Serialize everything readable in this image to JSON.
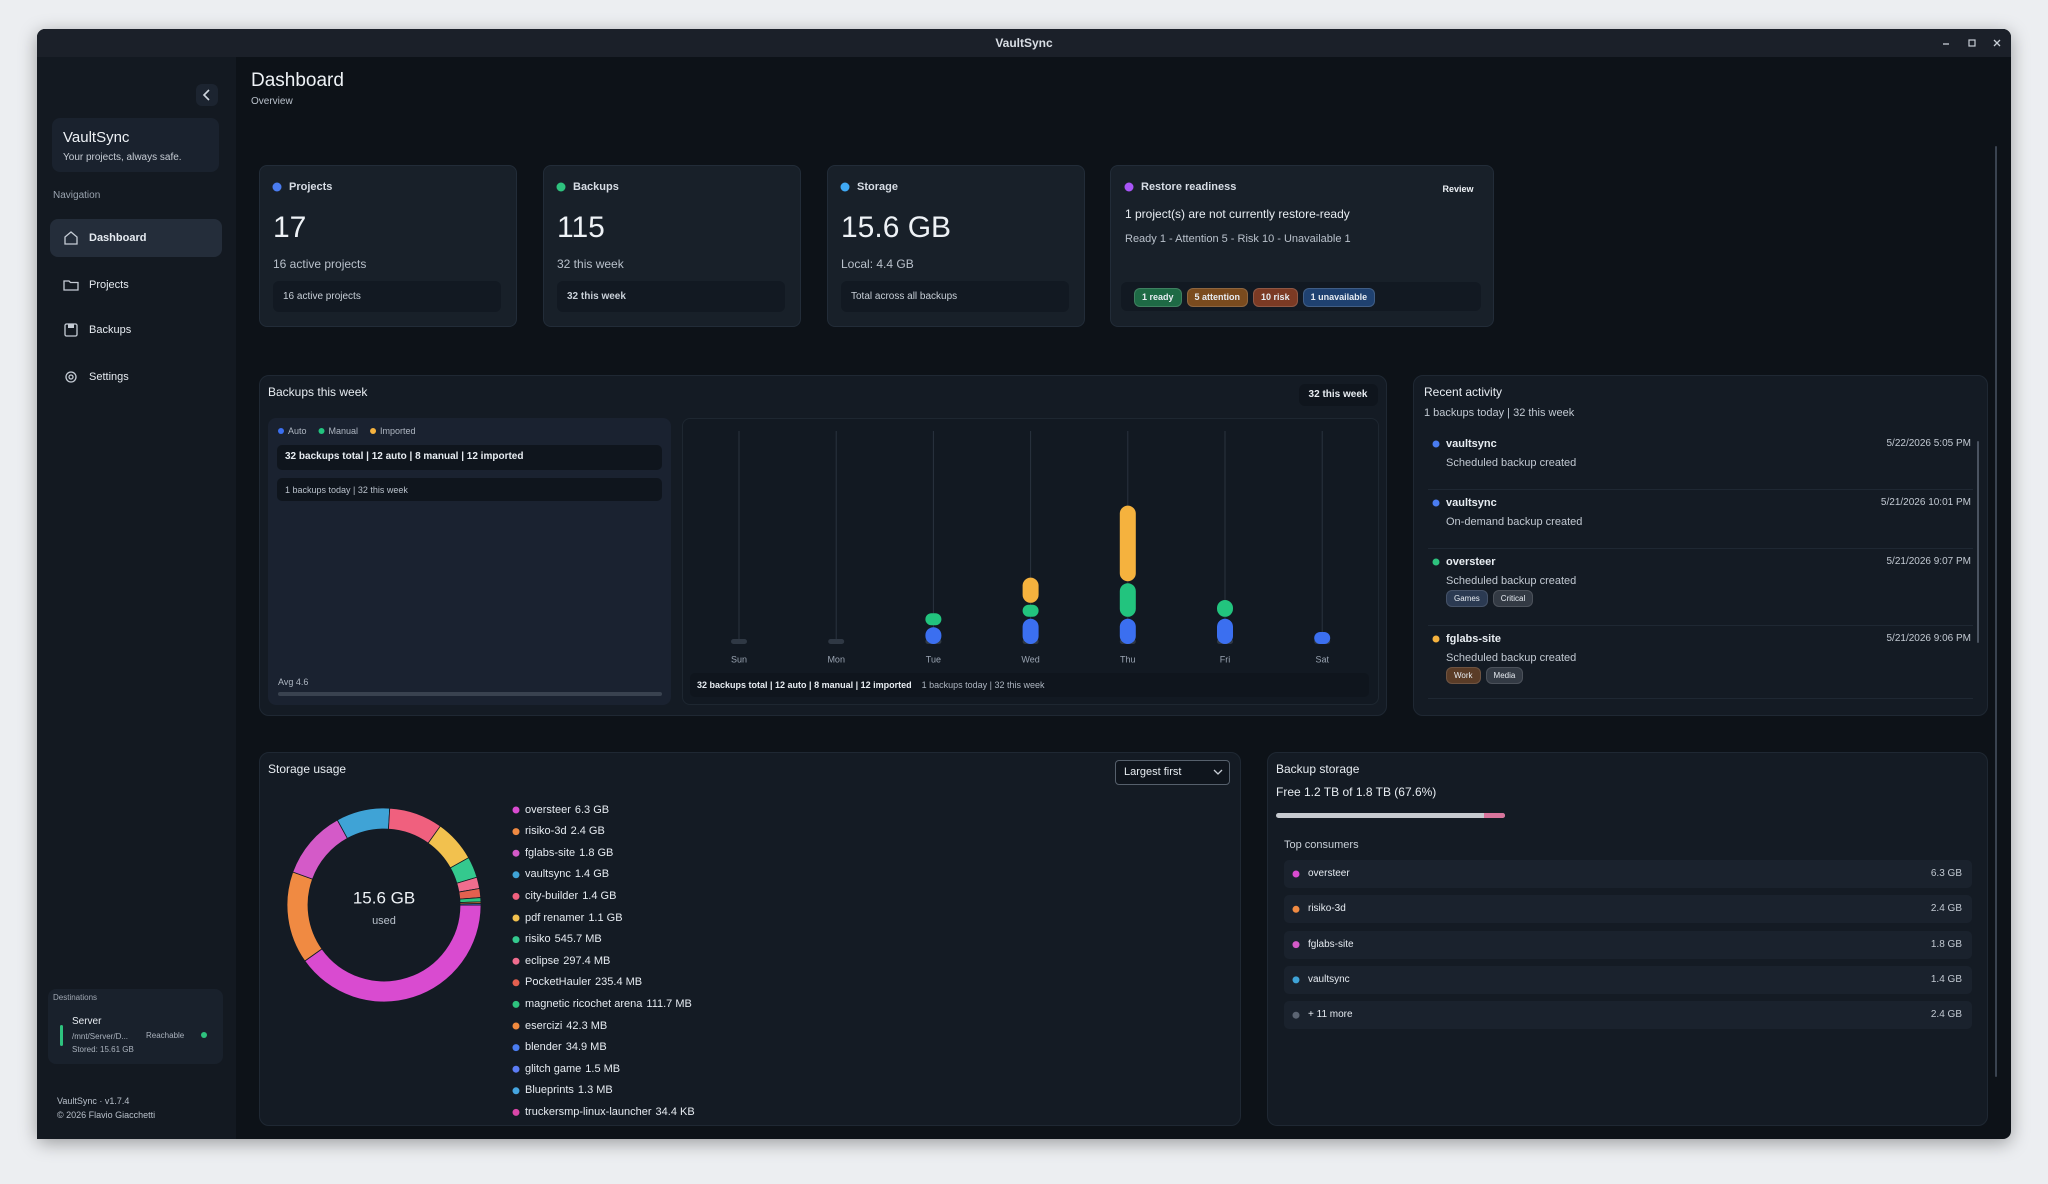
{
  "window": {
    "title": "VaultSync"
  },
  "sidebar": {
    "app_name": "VaultSync",
    "tagline": "Your projects, always safe.",
    "nav_heading": "Navigation",
    "nav": [
      "Dashboard",
      "Projects",
      "Backups",
      "Settings"
    ],
    "destinations": {
      "heading": "Destinations",
      "name": "Server",
      "path": "/mnt/Server/D...",
      "stored": "Stored: 15.61 GB",
      "status": "Reachable"
    },
    "version": "VaultSync · v1.7.4",
    "copyright": "© 2026 Flavio Giacchetti"
  },
  "header": {
    "title": "Dashboard",
    "subtitle": "Overview"
  },
  "cards": [
    {
      "label": "Projects",
      "value": 17,
      "detail": "16 active projects",
      "footer": "16 active projects",
      "color": "#4a7cf0"
    },
    {
      "label": "Backups",
      "value": 115,
      "detail": "32 this week",
      "footer": "32 this week",
      "color": "#2ec27e"
    },
    {
      "label": "Storage",
      "value": "15.6 GB",
      "detail": "Local: 4.4 GB",
      "footer": "Total across all backups",
      "color": "#3fa9f5"
    }
  ],
  "restore": {
    "label": "Restore readiness",
    "action": "Review",
    "color": "#a855f7",
    "message": "1 project(s) are not currently restore-ready",
    "summary": "Ready 1 - Attention 5 - Risk 10 - Unavailable 1",
    "badges": [
      {
        "text": "1 ready",
        "color": "#1e6a45"
      },
      {
        "text": "5 attention",
        "color": "#7a4b1e"
      },
      {
        "text": "10 risk",
        "color": "#7b3a24"
      },
      {
        "text": "1 unavailable",
        "color": "#1f4170"
      }
    ]
  },
  "backups_week": {
    "title": "Backups this week",
    "badge": "32 this week",
    "summary": "32 backups total | 12 auto | 8 manual | 12 imported",
    "today": "1 backups today | 32 this week",
    "average": "Avg 4.6",
    "footer_summary": "32 backups total | 12 auto | 8 manual | 12 imported",
    "footer_today": "1 backups today | 32 this week"
  },
  "chart_data": [
    {
      "type": "bar",
      "stacked": true,
      "categories": [
        "Sun",
        "Mon",
        "Tue",
        "Wed",
        "Thu",
        "Fri",
        "Sat"
      ],
      "series": [
        {
          "name": "Auto",
          "color": "#3b6ff0",
          "values": [
            0,
            0,
            2,
            3,
            3,
            3,
            1
          ]
        },
        {
          "name": "Manual",
          "color": "#22c47e",
          "values": [
            0,
            0,
            1,
            1,
            4,
            2,
            0
          ]
        },
        {
          "name": "Imported",
          "color": "#f5b23e",
          "values": [
            0,
            0,
            0,
            3,
            9,
            0,
            0
          ]
        }
      ]
    },
    {
      "type": "pie",
      "donut": true,
      "center_value": "15.6 GB",
      "center_label": "used",
      "categories": [
        "oversteer",
        "risiko-3d",
        "fglabs-site",
        "vaultsync",
        "city-builder",
        "pdf renamer",
        "risiko",
        "eclipse",
        "PocketHauler",
        "magnetic ricochet arena",
        "esercizi",
        "blender",
        "glitch game",
        "Blueprints",
        "truckersmp-linux-launcher"
      ],
      "values": [
        6300,
        2400,
        1800,
        1400,
        1400,
        1100,
        545.7,
        297.4,
        235.4,
        111.7,
        42.3,
        34.9,
        1.5,
        1.3,
        0.0344
      ],
      "value_labels": [
        "6.3 GB",
        "2.4 GB",
        "1.8 GB",
        "1.4 GB",
        "1.4 GB",
        "1.1 GB",
        "545.7 MB",
        "297.4 MB",
        "235.4 MB",
        "111.7 MB",
        "42.3 MB",
        "34.9 MB",
        "1.5 MB",
        "1.3 MB",
        "34.4 KB"
      ],
      "colors": [
        "#d94bd0",
        "#f08a42",
        "#d45ac8",
        "#3fa3d6",
        "#f0607e",
        "#f2c14e",
        "#34c98e",
        "#f06d8e",
        "#e4604f",
        "#2ec27e",
        "#f08a3e",
        "#4a7cf0",
        "#5b7cf5",
        "#45a5e0",
        "#d946a8"
      ]
    }
  ],
  "storage_usage": {
    "title": "Storage usage",
    "sort": "Largest first"
  },
  "backup_storage": {
    "title": "Backup storage",
    "free": "Free 1.2 TB of 1.8 TB (67.6%)",
    "consumers_heading": "Top consumers",
    "consumers": [
      {
        "name": "oversteer",
        "size": "6.3 GB",
        "color": "#d94bd0"
      },
      {
        "name": "risiko-3d",
        "size": "2.4 GB",
        "color": "#f08a42"
      },
      {
        "name": "fglabs-site",
        "size": "1.8 GB",
        "color": "#d45ac8"
      },
      {
        "name": "vaultsync",
        "size": "1.4 GB",
        "color": "#3fa3d6"
      },
      {
        "name": "+ 11 more",
        "size": "2.4 GB",
        "color": "#5b6472"
      }
    ]
  },
  "recent_activity": {
    "title": "Recent activity",
    "subtitle": "1 backups today | 32 this week",
    "items": [
      {
        "project": "vaultsync",
        "event": "Scheduled backup created",
        "time": "5/22/2026 5:05 PM",
        "color": "#4a7cf0"
      },
      {
        "project": "vaultsync",
        "event": "On-demand backup created",
        "time": "5/21/2026 10:01 PM",
        "color": "#4a7cf0"
      },
      {
        "project": "oversteer",
        "event": "Scheduled backup created",
        "time": "5/21/2026 9:07 PM",
        "color": "#2ec27e",
        "tags": [
          {
            "text": "Games",
            "color": "#2b3a52"
          },
          {
            "text": "Critical",
            "color": "#333a44"
          }
        ]
      },
      {
        "project": "fglabs-site",
        "event": "Scheduled backup created",
        "time": "5/21/2026 9:06 PM",
        "color": "#f5b23e",
        "tags": [
          {
            "text": "Work",
            "color": "#5a3c27"
          },
          {
            "text": "Media",
            "color": "#333a44"
          }
        ]
      }
    ]
  }
}
